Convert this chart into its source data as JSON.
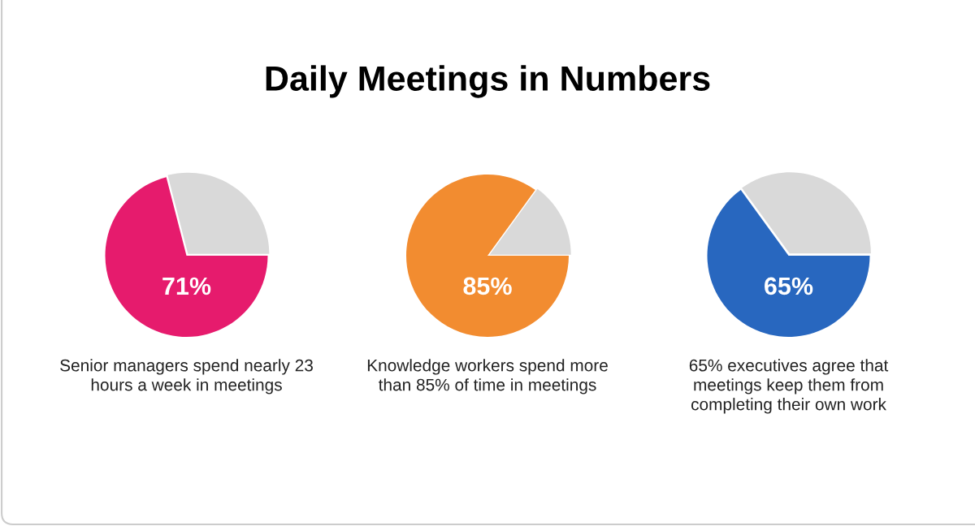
{
  "chart_data": [
    {
      "type": "other",
      "title": "Daily Meetings in Numbers"
    },
    {
      "type": "pie",
      "categories": [
        null,
        null
      ],
      "values": [
        71,
        29
      ],
      "colors": [
        "#e61b6d",
        "#d9d9d9"
      ],
      "value_labels": [
        "71%",
        null
      ],
      "annotations": [
        "Senior managers spend nearly 23\nhours a week in meetings"
      ]
    },
    {
      "type": "pie",
      "categories": [
        null,
        null
      ],
      "values": [
        85,
        15
      ],
      "colors": [
        "#f28c30",
        "#d9d9d9"
      ],
      "value_labels": [
        "85%",
        null
      ],
      "annotations": [
        "Knowledge workers spend more\nthan 85% of time in meetings"
      ]
    },
    {
      "type": "pie",
      "categories": [
        null,
        null
      ],
      "values": [
        65,
        35
      ],
      "colors": [
        "#2867bf",
        "#d9d9d9"
      ],
      "value_labels": [
        "65%",
        null
      ],
      "annotations": [
        "65% executives agree that\nmeetings keep them from\ncompleting their own work"
      ]
    }
  ]
}
